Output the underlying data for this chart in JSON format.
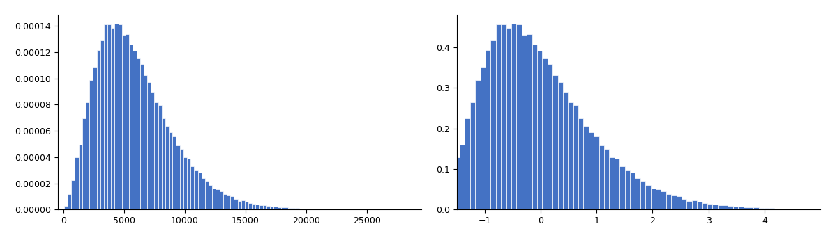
{
  "seed": 1234,
  "n_samples": 100000,
  "bar_color": "#4472c4",
  "bar_edgecolor": "white",
  "nbins": 100,
  "fig_width": 11.97,
  "fig_height": 3.45,
  "left_xlim": [
    -500,
    29500
  ],
  "right_xlim": [
    -1.5,
    5.0
  ],
  "left_xticks": [
    0,
    5000,
    10000,
    15000,
    20000,
    25000
  ],
  "right_xticks": [
    -1,
    0,
    1,
    2,
    3,
    4
  ],
  "background_color": "#ffffff",
  "shape_k": 3.5,
  "shape_scale": 2000,
  "shape_shift": 0
}
